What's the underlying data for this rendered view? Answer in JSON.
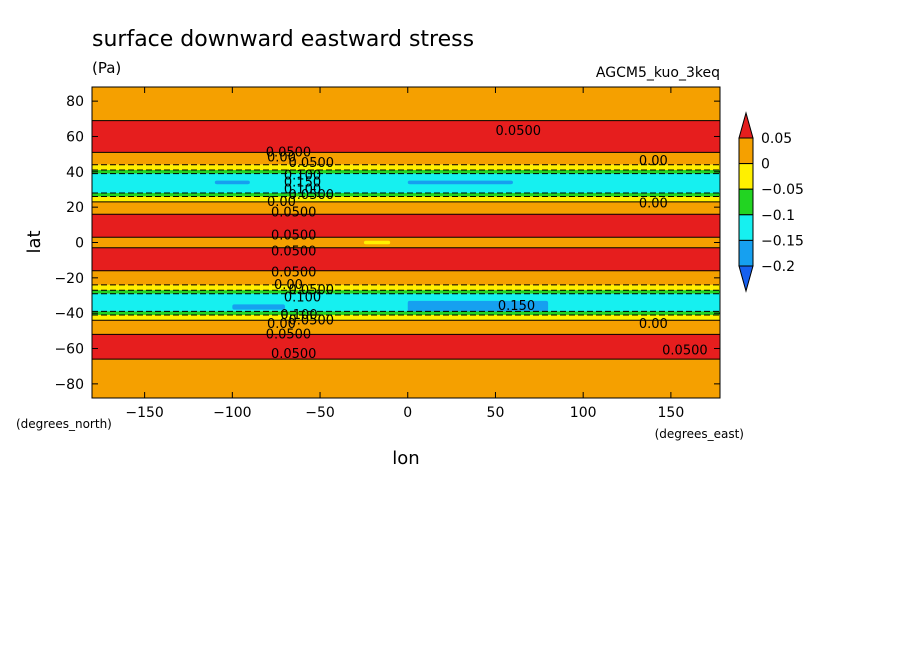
{
  "chart_data": {
    "type": "heatmap",
    "title": "surface downward eastward stress",
    "units": "(Pa)",
    "model_label": "AGCM5_kuo_3keq",
    "xlabel": "lon",
    "ylabel": "lat",
    "x_unit_label": "(degrees_east)",
    "y_unit_label": "(degrees_north)",
    "xlim": [
      -180,
      178
    ],
    "ylim": [
      -88,
      88
    ],
    "x_ticks": [
      -150,
      -100,
      -50,
      0,
      50,
      100,
      150
    ],
    "y_ticks": [
      80,
      60,
      40,
      20,
      0,
      -20,
      -40,
      -60,
      -80
    ],
    "x_tick_labels": [
      "−150",
      "−100",
      "−50",
      "0",
      "50",
      "100",
      "150"
    ],
    "y_tick_labels": [
      "80",
      "60",
      "40",
      "20",
      "0",
      "−20",
      "−40",
      "−60",
      "−80"
    ],
    "colorbar": {
      "levels": [
        0.05,
        0,
        -0.05,
        -0.1,
        -0.15,
        -0.2
      ],
      "level_labels": [
        "0.05",
        "0",
        "−0.05",
        "−0.1",
        "−0.15",
        "−0.2"
      ],
      "colors": [
        "#e61e1e",
        "#f5a000",
        "#fff000",
        "#22d422",
        "#16f0f0",
        "#16a0f0",
        "#1660f0"
      ],
      "extend": "both"
    },
    "bands": [
      {
        "lat_top": 88,
        "lat_bottom": 69,
        "color": "#f5a000"
      },
      {
        "lat_top": 69,
        "lat_bottom": 51,
        "color": "#e61e1e"
      },
      {
        "lat_top": 51,
        "lat_bottom": 44,
        "color": "#f5a000"
      },
      {
        "lat_top": 44,
        "lat_bottom": 41,
        "color": "#fff000"
      },
      {
        "lat_top": 41,
        "lat_bottom": 39,
        "color": "#22d422"
      },
      {
        "lat_top": 39,
        "lat_bottom": 28,
        "color": "#16f0f0"
      },
      {
        "lat_top": 28,
        "lat_bottom": 26,
        "color": "#22d422"
      },
      {
        "lat_top": 26,
        "lat_bottom": 23,
        "color": "#fff000"
      },
      {
        "lat_top": 23,
        "lat_bottom": 16,
        "color": "#f5a000"
      },
      {
        "lat_top": 16,
        "lat_bottom": 3,
        "color": "#e61e1e"
      },
      {
        "lat_top": 3,
        "lat_bottom": -3,
        "color": "#f5a000"
      },
      {
        "lat_top": -3,
        "lat_bottom": -16,
        "color": "#e61e1e"
      },
      {
        "lat_top": -16,
        "lat_bottom": -24,
        "color": "#f5a000"
      },
      {
        "lat_top": -24,
        "lat_bottom": -27,
        "color": "#fff000"
      },
      {
        "lat_top": -27,
        "lat_bottom": -29,
        "color": "#22d422"
      },
      {
        "lat_top": -29,
        "lat_bottom": -39,
        "color": "#16f0f0"
      },
      {
        "lat_top": -39,
        "lat_bottom": -41,
        "color": "#22d422"
      },
      {
        "lat_top": -41,
        "lat_bottom": -44,
        "color": "#fff000"
      },
      {
        "lat_top": -44,
        "lat_bottom": -52,
        "color": "#f5a000"
      },
      {
        "lat_top": -52,
        "lat_bottom": -66,
        "color": "#e61e1e"
      },
      {
        "lat_top": -66,
        "lat_bottom": -88,
        "color": "#f5a000"
      }
    ],
    "patches": [
      {
        "lon_min": -110,
        "lon_max": -90,
        "lat_min": 33,
        "lat_max": 35,
        "color": "#16a0f0"
      },
      {
        "lon_min": 0,
        "lon_max": 60,
        "lat_min": 33,
        "lat_max": 35,
        "color": "#16a0f0"
      },
      {
        "lon_min": -100,
        "lon_max": -70,
        "lat_min": -38,
        "lat_max": -35,
        "color": "#16a0f0"
      },
      {
        "lon_min": 0,
        "lon_max": 80,
        "lat_min": -39,
        "lat_max": -33,
        "color": "#16a0f0"
      },
      {
        "lon_min": -25,
        "lon_max": -10,
        "lat_min": -1,
        "lat_max": 1,
        "color": "#fff000"
      }
    ],
    "contour_labels": [
      {
        "text": "0.0500",
        "lon": 63,
        "lat": 63
      },
      {
        "text": "0.0500",
        "lon": -68,
        "lat": 51
      },
      {
        "text": "0.00",
        "lon": -72,
        "lat": 48
      },
      {
        "text": "0.0500",
        "lon": -55,
        "lat": 45
      },
      {
        "text": "0.100",
        "lon": -60,
        "lat": 38
      },
      {
        "text": "0.150",
        "lon": -60,
        "lat": 34
      },
      {
        "text": "0.100",
        "lon": -60,
        "lat": 30
      },
      {
        "text": "0.0500",
        "lon": -55,
        "lat": 27
      },
      {
        "text": "0.00",
        "lon": -72,
        "lat": 23
      },
      {
        "text": "0.0500",
        "lon": -65,
        "lat": 17
      },
      {
        "text": "0.00",
        "lon": 140,
        "lat": 46
      },
      {
        "text": "0.00",
        "lon": 140,
        "lat": 22
      },
      {
        "text": "0.0500",
        "lon": -65,
        "lat": 4
      },
      {
        "text": "0.0500",
        "lon": -65,
        "lat": -5
      },
      {
        "text": "0.0500",
        "lon": -65,
        "lat": -17
      },
      {
        "text": "0.00",
        "lon": -68,
        "lat": -24
      },
      {
        "text": "0.0500",
        "lon": -55,
        "lat": -27
      },
      {
        "text": "0.100",
        "lon": -60,
        "lat": -31
      },
      {
        "text": "0.150",
        "lon": 62,
        "lat": -36
      },
      {
        "text": "0.100",
        "lon": -62,
        "lat": -41
      },
      {
        "text": "0.0500",
        "lon": -55,
        "lat": -44
      },
      {
        "text": "0.00",
        "lon": -72,
        "lat": -46
      },
      {
        "text": "0.0500",
        "lon": -68,
        "lat": -52
      },
      {
        "text": "0.00",
        "lon": 140,
        "lat": -46
      },
      {
        "text": "0.0500",
        "lon": 158,
        "lat": -61
      },
      {
        "text": "0.0500",
        "lon": -65,
        "lat": -63
      }
    ]
  }
}
